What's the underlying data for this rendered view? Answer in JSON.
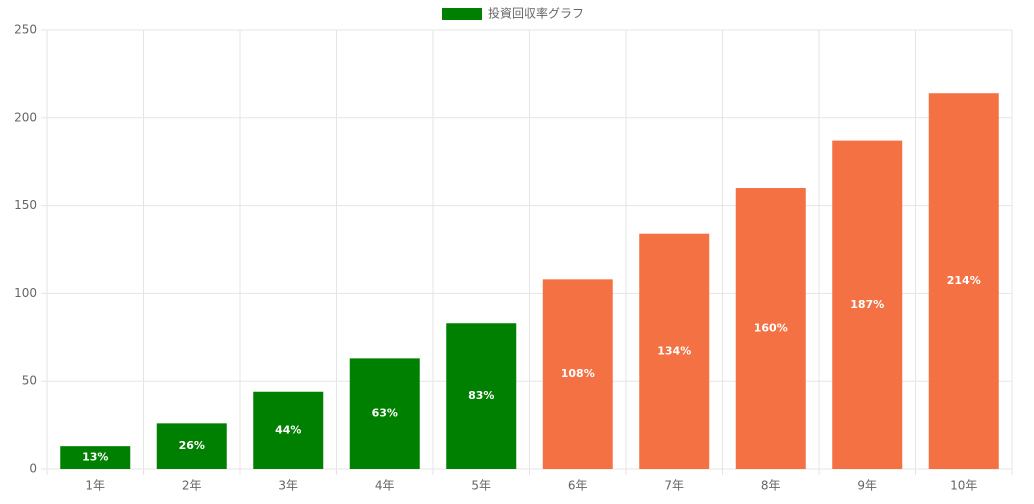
{
  "chart_data": {
    "type": "bar",
    "categories": [
      "1年",
      "2年",
      "3年",
      "4年",
      "5年",
      "6年",
      "7年",
      "8年",
      "9年",
      "10年"
    ],
    "series": [
      {
        "name": "投資回収率グラフ",
        "color": "#008000",
        "colors": [
          "#008000",
          "#008000",
          "#008000",
          "#008000",
          "#008000",
          "#f37142",
          "#f37142",
          "#f37142",
          "#f37142",
          "#f37142"
        ],
        "values": [
          13,
          26,
          44,
          63,
          83,
          108,
          134,
          160,
          187,
          214
        ],
        "value_labels": [
          "13%",
          "26%",
          "44%",
          "63%",
          "83%",
          "108%",
          "134%",
          "160%",
          "187%",
          "214%"
        ]
      }
    ],
    "ylim": [
      0,
      250
    ],
    "yticks": [
      0,
      50,
      100,
      150,
      200,
      250
    ],
    "grid": true,
    "legend": "top"
  }
}
